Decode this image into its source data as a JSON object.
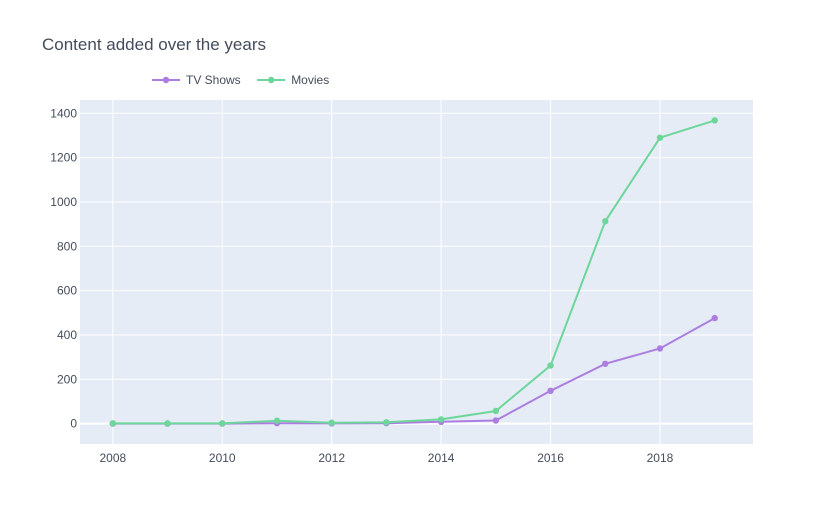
{
  "chart_data": {
    "type": "line",
    "title": "Content added over the years",
    "xlabel": "",
    "ylabel": "",
    "x": [
      2008,
      2009,
      2010,
      2011,
      2012,
      2013,
      2014,
      2015,
      2016,
      2017,
      2018,
      2019
    ],
    "xlim": [
      2007.4,
      2019.7
    ],
    "ylim": [
      -92,
      1460
    ],
    "x_ticks": [
      2008,
      2010,
      2012,
      2014,
      2016,
      2018
    ],
    "y_ticks": [
      0,
      200,
      400,
      600,
      800,
      1000,
      1200,
      1400
    ],
    "grid": true,
    "legend_position": "top-left, horizontal",
    "plot_background": "#e5ecf6",
    "series": [
      {
        "name": "TV Shows",
        "color": "#ab7ee0",
        "values": [
          0,
          0,
          0,
          2,
          1,
          2,
          8,
          14,
          148,
          270,
          339,
          476
        ]
      },
      {
        "name": "Movies",
        "color": "#6dd69a",
        "values": [
          1,
          1,
          1,
          13,
          4,
          6,
          19,
          57,
          262,
          913,
          1290,
          1368
        ]
      }
    ]
  }
}
